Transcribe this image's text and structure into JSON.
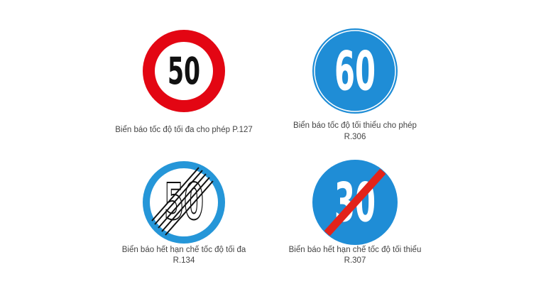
{
  "signs": [
    {
      "number": "50",
      "caption": [
        "Biển báo tốc độ tối đa cho phép P.127"
      ]
    },
    {
      "number": "60",
      "caption": [
        "Biển báo tốc độ tối thiểu cho phép",
        "R.306"
      ]
    },
    {
      "number": "50",
      "caption": [
        "Biển báo hết hạn chế tốc độ tối đa",
        "R.134"
      ]
    },
    {
      "number": "30",
      "caption": [
        "Biển báo hết hạn chế tốc độ tối thiểu",
        "R.307"
      ]
    }
  ]
}
